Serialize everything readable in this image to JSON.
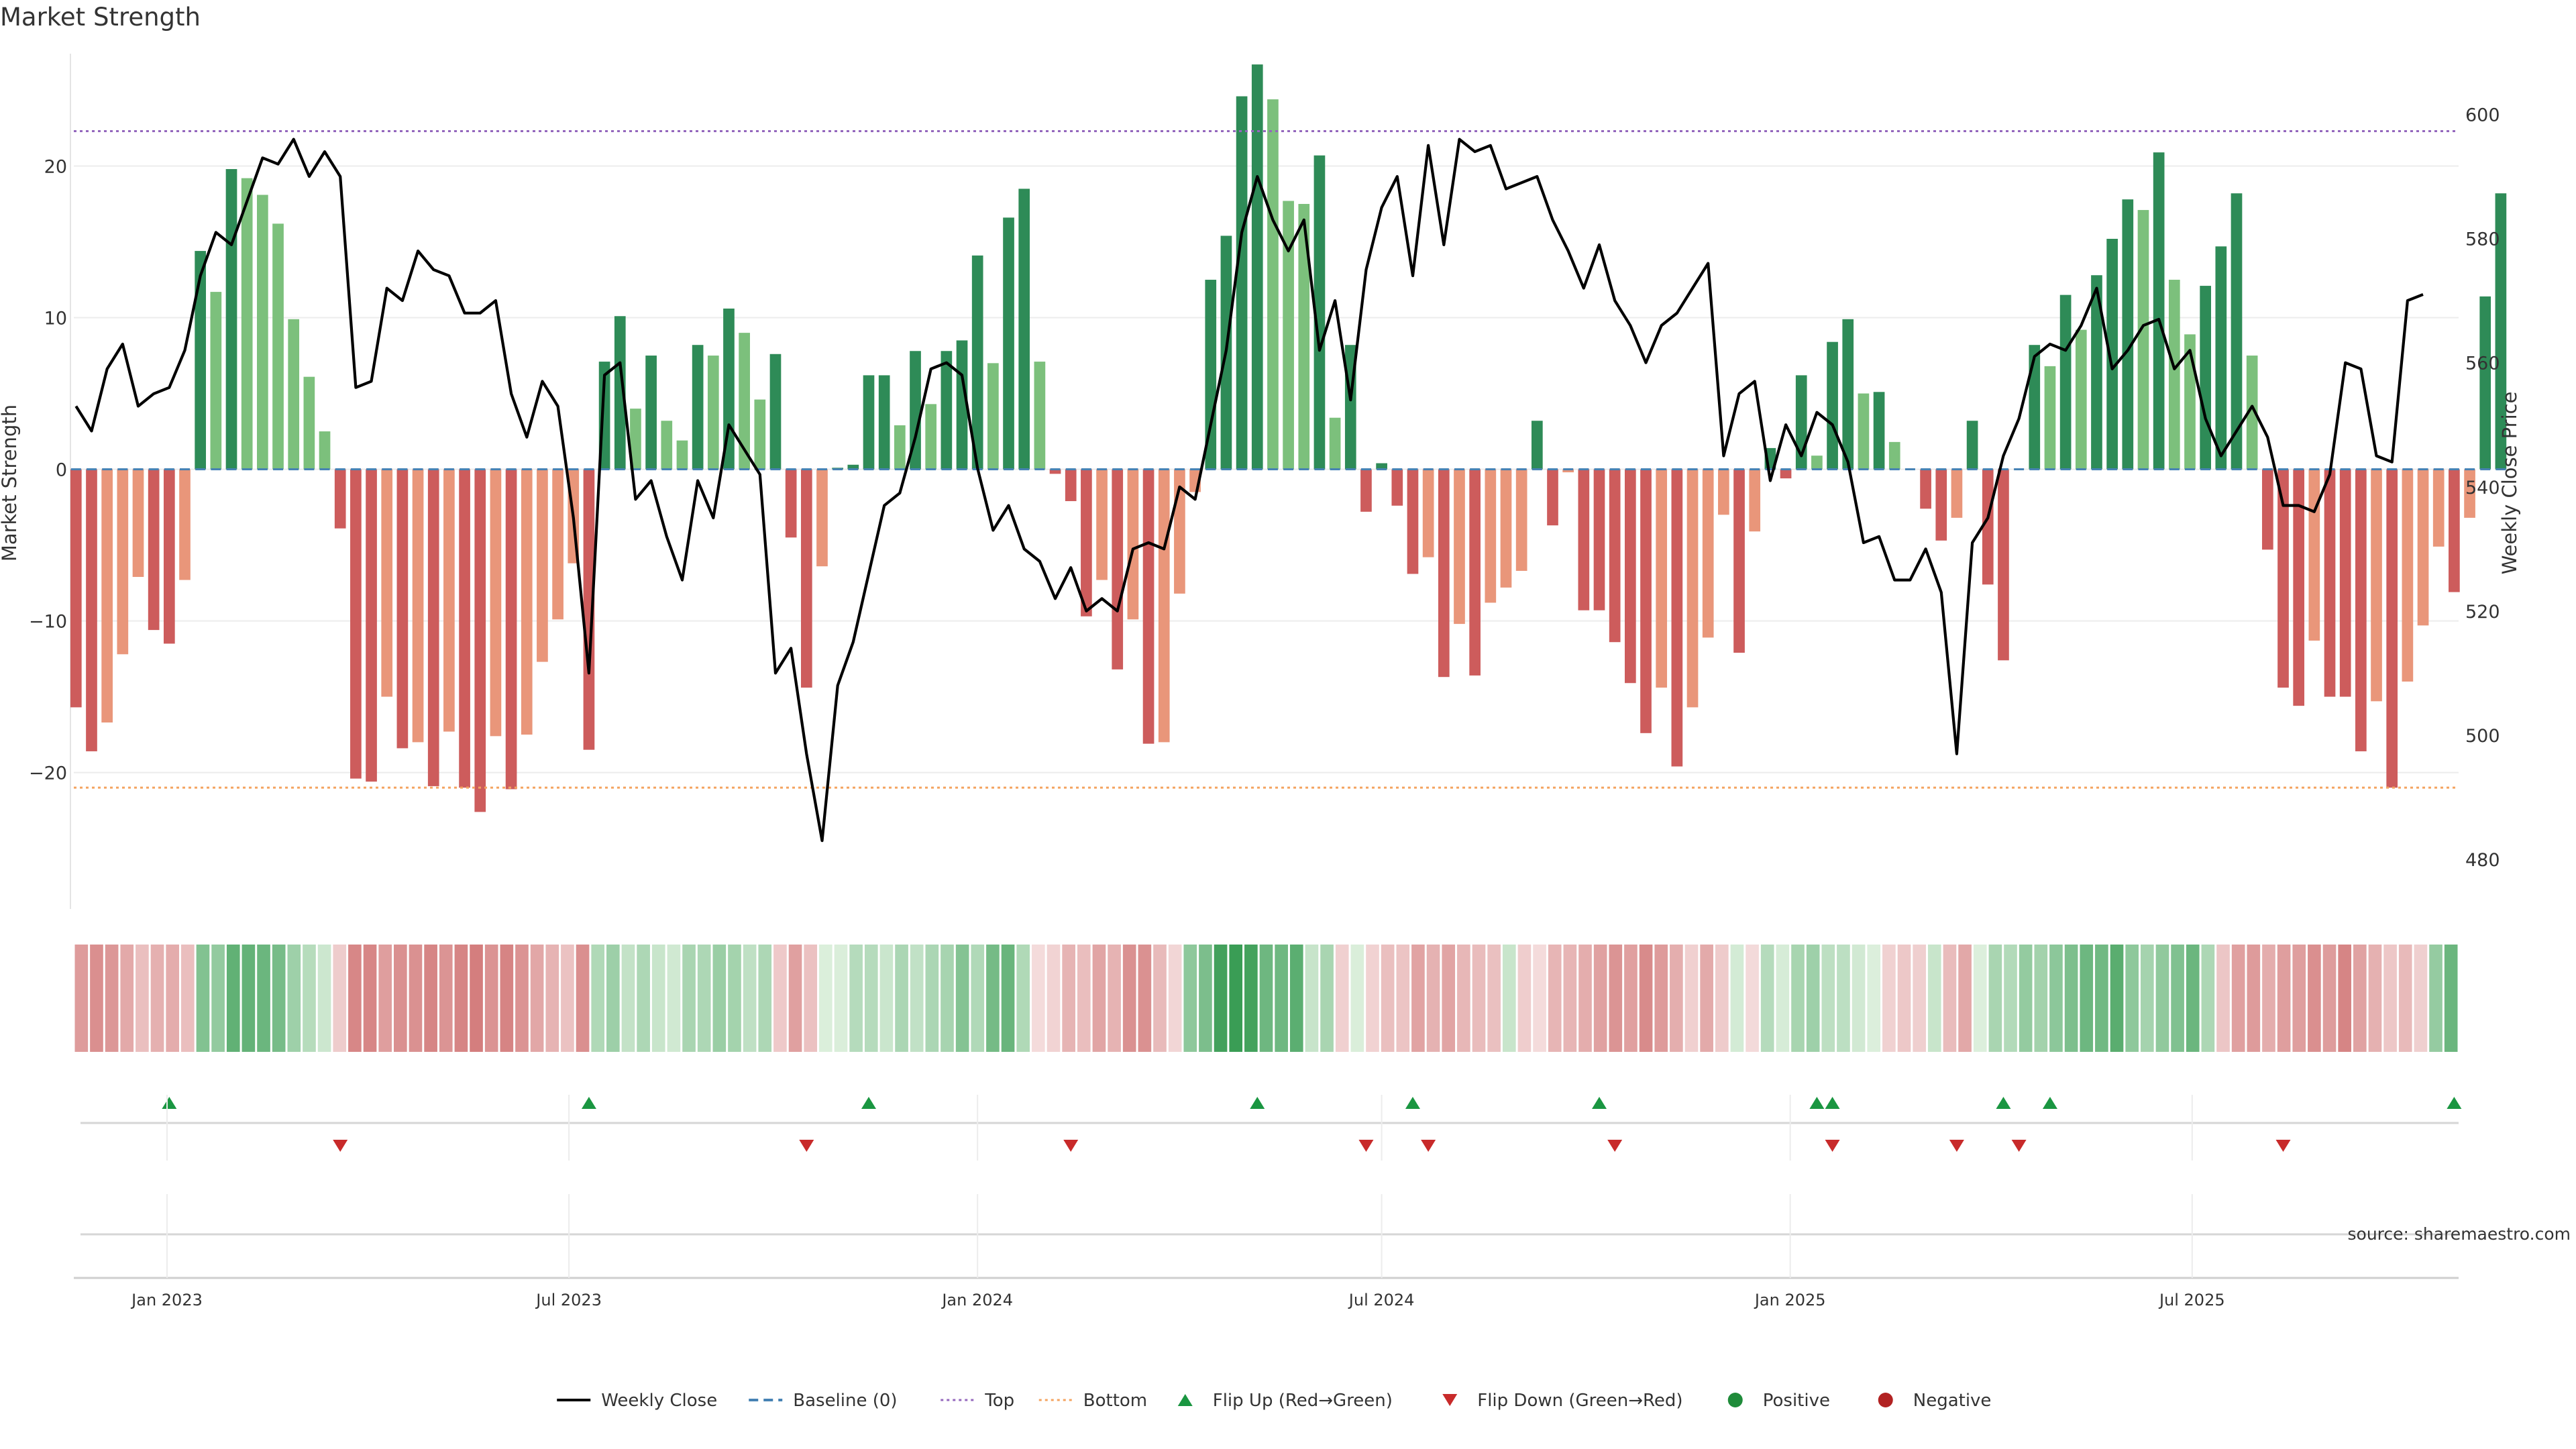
{
  "title": "Market Strength",
  "source": "source: sharemaestro.com",
  "colors": {
    "strong_green": "#2e8b57",
    "light_green": "#7cc07c",
    "strong_red": "#cd5c5c",
    "light_red": "#e9967a",
    "price": "#000000",
    "baseline": "#4682b4",
    "top": "#9467bd",
    "bottom": "#f4a460",
    "flip_up": "#1a9641",
    "flip_down": "#c82a2a",
    "positive": "#1f8b3a",
    "negative": "#b22222"
  },
  "chart_data": {
    "type": "bar",
    "title": "Market Strength",
    "ylabel": "Market Strength",
    "y2label": "Weekly Close Price",
    "ylim": [
      -29,
      27.5
    ],
    "y2lim": [
      472,
      610
    ],
    "yticks": [
      20,
      10,
      0,
      -10,
      -20
    ],
    "yticklabels": [
      "20",
      "10",
      "0",
      "−10",
      "−20"
    ],
    "y2ticks": [
      600,
      580,
      560,
      540,
      520,
      500,
      480
    ],
    "xlim": [
      "2022-11-20",
      "2025-10-29"
    ],
    "xticks": [
      "2023-01-01",
      "2023-07-01",
      "2024-01-01",
      "2024-07-01",
      "2025-01-01",
      "2025-07-01"
    ],
    "xticklabels": [
      "Jan 2023",
      "Jul 2023",
      "Jan 2024",
      "Jul 2024",
      "Jan 2025",
      "Jul 2025"
    ],
    "start_date": "2022-11-21",
    "top_line": 22.3,
    "bottom_line": -21,
    "grid": true,
    "legend_position": "bottom-center",
    "strength": [
      -15.7,
      -18.6,
      -16.7,
      -12.2,
      -7.1,
      -10.6,
      -11.5,
      -7.3,
      14.4,
      11.7,
      19.8,
      19.2,
      18.1,
      16.2,
      9.9,
      6.1,
      2.5,
      -3.9,
      -20.4,
      -20.6,
      -15,
      -18.4,
      -18,
      -20.9,
      -17.3,
      -21,
      -22.6,
      -17.6,
      -21.1,
      -17.5,
      -12.7,
      -9.9,
      -6.2,
      -18.5,
      7.1,
      10.1,
      4,
      7.5,
      3.2,
      1.9,
      8.2,
      7.5,
      10.6,
      9,
      4.6,
      7.6,
      -4.5,
      -14.4,
      -6.4,
      0.1,
      0.3,
      6.2,
      6.2,
      2.9,
      7.8,
      4.3,
      7.8,
      8.5,
      14.1,
      7,
      16.6,
      18.5,
      7.1,
      -0.3,
      -2.1,
      -9.7,
      -7.3,
      -13.2,
      -9.9,
      -18.1,
      -18,
      -8.2,
      -1.5,
      12.5,
      15.4,
      24.6,
      26.7,
      24.4,
      17.7,
      17.5,
      20.7,
      3.4,
      8.2,
      -2.8,
      0.4,
      -2.4,
      -6.9,
      -5.8,
      -13.7,
      -10.2,
      -13.6,
      -8.8,
      -7.8,
      -6.7,
      3.2,
      -3.7,
      -0.2,
      -9.3,
      -9.3,
      -11.4,
      -14.1,
      -17.4,
      -14.4,
      -19.6,
      -15.7,
      -11.1,
      -3,
      -12.1,
      -4.1,
      1.4,
      -0.6,
      6.2,
      0.9,
      8.4,
      9.9,
      5,
      5.1,
      1.8,
      0,
      -2.6,
      -4.7,
      -3.2,
      3.2,
      -7.6,
      -12.6,
      0,
      8.2,
      6.8,
      11.5,
      9.2,
      12.8,
      15.2,
      17.8,
      17.1,
      20.9,
      12.5,
      8.9,
      12.1,
      14.7,
      18.2,
      7.5,
      -5.3,
      -14.4,
      -15.6,
      -11.3,
      -15,
      -15,
      -18.6,
      -15.3,
      -21,
      -14,
      -10.3,
      -5.1,
      -8.1,
      -3.2,
      11.4,
      18.2
    ],
    "x_price": [
      "2022-11-21",
      "2022-11-28",
      "2022-12-05",
      "2022-12-12",
      "2022-12-19",
      "2022-12-26",
      "2023-01-02",
      "2023-01-09",
      "2023-01-16",
      "2023-01-23",
      "2023-01-30",
      "2023-02-06",
      "2023-02-13",
      "2023-02-20",
      "2023-02-27",
      "2023-03-06",
      "2023-03-13",
      "2023-03-20",
      "2023-03-27",
      "2023-04-03",
      "2023-04-10",
      "2023-04-17",
      "2023-04-24",
      "2023-05-01",
      "2023-05-08",
      "2023-05-15",
      "2023-05-22",
      "2023-05-29",
      "2023-06-05",
      "2023-06-12",
      "2023-06-19",
      "2023-06-26",
      "2023-07-03",
      "2023-07-10",
      "2023-07-17",
      "2023-07-24",
      "2023-07-31",
      "2023-08-07",
      "2023-08-14",
      "2023-08-21",
      "2023-08-28",
      "2023-09-04",
      "2023-09-11",
      "2023-09-18",
      "2023-09-25",
      "2023-10-02",
      "2023-10-09",
      "2023-10-16",
      "2023-10-23",
      "2023-10-30",
      "2023-11-06",
      "2023-11-13",
      "2023-11-20",
      "2023-11-27",
      "2023-12-04",
      "2023-12-11",
      "2023-12-18",
      "2023-12-25",
      "2024-01-01",
      "2024-01-08",
      "2024-01-15",
      "2024-01-22",
      "2024-01-29",
      "2024-02-05",
      "2024-02-12",
      "2024-02-19",
      "2024-02-26",
      "2024-03-04",
      "2024-03-11",
      "2024-03-18",
      "2024-03-25",
      "2024-04-01",
      "2024-04-08",
      "2024-04-15",
      "2024-04-22",
      "2024-04-29",
      "2024-05-06",
      "2024-05-13",
      "2024-05-20",
      "2024-05-27",
      "2024-06-03",
      "2024-06-10",
      "2024-06-17",
      "2024-06-24",
      "2024-07-01",
      "2024-07-08",
      "2024-07-15",
      "2024-07-22",
      "2024-07-29",
      "2024-08-05",
      "2024-08-12",
      "2024-08-19",
      "2024-08-26",
      "2024-09-02",
      "2024-09-09",
      "2024-09-16",
      "2024-09-23",
      "2024-09-30",
      "2024-10-07",
      "2024-10-14",
      "2024-10-21",
      "2024-10-28",
      "2024-11-04",
      "2024-11-11",
      "2024-11-18",
      "2024-11-25",
      "2024-12-02",
      "2024-12-09",
      "2024-12-16",
      "2024-12-23",
      "2024-12-30",
      "2025-01-06",
      "2025-01-13",
      "2025-01-20",
      "2025-01-27",
      "2025-02-03",
      "2025-02-10",
      "2025-02-17",
      "2025-02-24",
      "2025-03-03",
      "2025-03-10",
      "2025-03-17",
      "2025-03-24",
      "2025-03-31",
      "2025-04-07",
      "2025-04-14",
      "2025-04-21",
      "2025-04-28",
      "2025-05-05",
      "2025-05-12",
      "2025-05-19",
      "2025-05-26",
      "2025-06-02",
      "2025-06-09",
      "2025-06-16",
      "2025-06-23",
      "2025-06-30",
      "2025-07-07",
      "2025-07-14",
      "2025-07-21",
      "2025-07-28",
      "2025-08-04",
      "2025-08-11",
      "2025-08-18",
      "2025-08-25",
      "2025-09-01",
      "2025-09-08",
      "2025-09-15",
      "2025-09-22",
      "2025-09-29",
      "2025-10-06",
      "2025-10-13",
      "2025-10-20",
      "2025-10-27"
    ],
    "price": [
      553,
      549,
      559,
      563,
      553,
      555,
      556,
      562,
      574,
      581,
      579,
      586,
      593,
      592,
      596,
      590,
      594,
      590,
      556,
      557,
      572,
      570,
      578,
      575,
      574,
      568,
      568,
      570,
      555,
      548,
      557,
      553,
      535,
      510,
      558,
      560,
      538,
      541,
      532,
      525,
      541,
      535,
      550,
      546,
      542,
      510,
      514,
      497,
      483,
      508,
      515,
      526,
      537,
      539,
      548,
      559,
      560,
      558,
      543,
      533,
      537,
      530,
      528,
      522,
      527,
      520,
      522,
      520,
      530,
      531,
      530,
      540,
      538,
      550,
      562,
      581,
      590,
      583,
      578,
      583,
      562,
      570,
      554,
      575,
      585,
      590,
      574,
      595,
      579,
      596,
      594,
      595,
      588,
      589,
      590,
      583,
      578,
      572,
      579,
      570,
      566,
      560,
      566,
      568,
      572,
      576,
      545,
      555,
      557,
      541,
      550,
      545,
      552,
      550,
      544,
      531,
      532,
      525,
      525,
      530,
      523,
      497,
      531,
      535,
      545,
      551,
      561,
      563,
      562,
      566,
      572,
      559,
      562,
      566,
      567,
      559,
      562,
      551,
      545,
      549,
      553,
      548,
      537,
      537,
      536,
      542,
      560,
      559,
      545,
      544,
      570,
      571
    ]
  },
  "heat_strip": {
    "values": [
      -15.7,
      -18.6,
      -16.7,
      -12.2,
      -7.1,
      -10.6,
      -11.5,
      -7.3,
      14.4,
      11.7,
      19.8,
      19.2,
      18.1,
      16.2,
      9.9,
      6.1,
      2.5,
      -3.9,
      -20.4,
      -20.6,
      -15,
      -18.4,
      -18,
      -20.9,
      -17.3,
      -21,
      -22.6,
      -17.6,
      -21.1,
      -17.5,
      -12.7,
      -9.9,
      -6.2,
      -18.5,
      7.1,
      10.1,
      4,
      7.5,
      3.2,
      1.9,
      8.2,
      7.5,
      10.6,
      9,
      4.6,
      7.6,
      -4.5,
      -14.4,
      -6.4,
      0.1,
      0.3,
      6.2,
      6.2,
      2.9,
      7.8,
      4.3,
      7.8,
      8.5,
      14.1,
      7,
      16.6,
      18.5,
      7.1,
      -0.3,
      -2.1,
      -9.7,
      -7.3,
      -13.2,
      -9.9,
      -18.1,
      -18,
      -8.2,
      -1.5,
      12.5,
      15.4,
      24.6,
      26.7,
      24.4,
      17.7,
      17.5,
      20.7,
      3.4,
      8.2,
      -2.8,
      0.4,
      -2.4,
      -6.9,
      -5.8,
      -13.7,
      -10.2,
      -13.6,
      -8.8,
      -7.8,
      -6.7,
      3.2,
      -3.7,
      -0.2,
      -9.3,
      -9.3,
      -11.4,
      -14.1,
      -17.4,
      -14.4,
      -19.6,
      -15.7,
      -11.1,
      -3,
      -12.1,
      -4.1,
      1.4,
      -0.6,
      6.2,
      0.9,
      8.4,
      9.9,
      5,
      5.1,
      1.8,
      0,
      -2.6,
      -4.7,
      -3.2,
      3.2,
      -7.6,
      -12.6,
      0,
      8.2,
      6.8,
      11.5,
      9.2,
      12.8,
      15.2,
      17.8,
      17.1,
      20.9,
      12.5,
      8.9,
      12.1,
      14.7,
      18.2,
      7.5,
      -5.3,
      -14.4,
      -15.6,
      -11.3,
      -15,
      -15,
      -18.6,
      -15.3,
      -21,
      -14,
      -10.3,
      -5.1,
      -8.1,
      -3.2,
      11.4,
      18.2
    ]
  },
  "flips": {
    "up": [
      "2023-01-02",
      "2023-07-10",
      "2023-11-13",
      "2024-05-06",
      "2024-07-15",
      "2024-10-07",
      "2025-01-13",
      "2025-01-20",
      "2025-04-07",
      "2025-04-28",
      "2025-10-27"
    ],
    "down": [
      "2023-03-20",
      "2023-10-16",
      "2024-02-12",
      "2024-06-24",
      "2024-07-22",
      "2024-10-14",
      "2025-01-20",
      "2025-03-17",
      "2025-04-14",
      "2025-08-11"
    ]
  },
  "legend": [
    {
      "label": "Weekly Close",
      "marker": "solid-line",
      "color": "#000000"
    },
    {
      "label": "Baseline (0)",
      "marker": "dash-line",
      "color": "#4682b4"
    },
    {
      "label": "Top",
      "marker": "dot-line",
      "color": "#9467bd"
    },
    {
      "label": "Bottom",
      "marker": "dot-line",
      "color": "#f4a460"
    },
    {
      "label": "Flip Up (Red→Green)",
      "marker": "triangle-up",
      "color": "#1a9641"
    },
    {
      "label": "Flip Down (Green→Red)",
      "marker": "triangle-down",
      "color": "#c82a2a"
    },
    {
      "label": "Positive",
      "marker": "circle",
      "color": "#1f8b3a"
    },
    {
      "label": "Negative",
      "marker": "circle",
      "color": "#b22222"
    }
  ]
}
